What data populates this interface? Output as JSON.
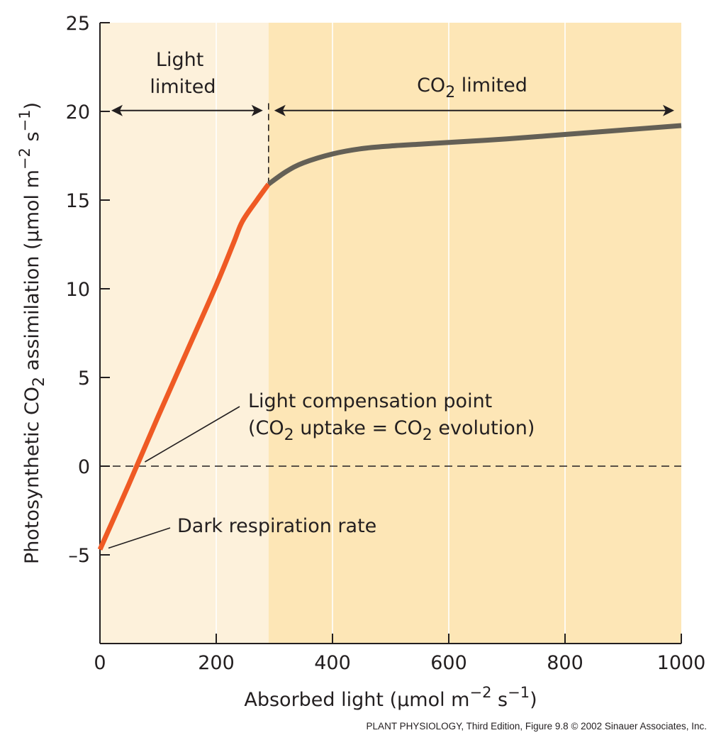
{
  "chart_data": {
    "type": "line",
    "xlabel_parts": [
      "Absorbed light (μmol m",
      "−2",
      " s",
      "−1",
      ")"
    ],
    "ylabel_parts": [
      "Photosynthetic CO",
      "2",
      " assimilation (μmol m",
      "−2",
      " s",
      "−1",
      ")"
    ],
    "xlim": [
      0,
      1000
    ],
    "ylim": [
      -10,
      25
    ],
    "x_ticks": [
      0,
      200,
      400,
      600,
      800,
      1000
    ],
    "x_tick_labels": [
      "0",
      "200",
      "400",
      "600",
      "800",
      "1000"
    ],
    "y_ticks": [
      -5,
      0,
      5,
      10,
      15,
      20,
      25
    ],
    "y_tick_labels": [
      "–5",
      "0",
      "5",
      "10",
      "15",
      "20",
      "25"
    ],
    "grid": true,
    "regions": [
      {
        "label_lines": [
          "Light",
          "limited"
        ],
        "x_range": [
          0,
          290
        ],
        "color": "#fdf1db"
      },
      {
        "label_parts": [
          "CO",
          "2",
          " limited"
        ],
        "x_range": [
          290,
          1000
        ],
        "color": "#fde6b6"
      }
    ],
    "series": [
      {
        "segment": "light-limited",
        "color": "#ef5a24",
        "x": [
          0,
          50,
          100,
          150,
          200,
          230,
          245,
          270,
          290
        ],
        "y": [
          -4.7,
          -1.0,
          2.8,
          6.5,
          10.2,
          12.6,
          13.8,
          15.0,
          15.9
        ]
      },
      {
        "segment": "co2-limited",
        "color": "#646056",
        "x": [
          290,
          320,
          350,
          400,
          450,
          500,
          550,
          600,
          700,
          800,
          900,
          1000
        ],
        "y": [
          15.9,
          16.6,
          17.1,
          17.6,
          17.9,
          18.05,
          18.15,
          18.25,
          18.45,
          18.7,
          18.95,
          19.2
        ]
      }
    ],
    "annotations": [
      {
        "name": "light-compensation-point",
        "line1": "Light compensation point",
        "line2_parts": [
          "(CO",
          "2",
          " uptake = CO",
          "2",
          " evolution)"
        ],
        "x": 70,
        "y": 0
      },
      {
        "name": "dark-respiration-rate",
        "text": "Dark respiration rate",
        "x": 0,
        "y": -4.7
      }
    ],
    "reference_lines": [
      {
        "axis": "y",
        "value": 0,
        "style": "dashed"
      },
      {
        "axis": "x",
        "value": 290,
        "y_range": [
          15.9,
          20.5
        ],
        "style": "dashed"
      }
    ]
  },
  "credit": {
    "book": "PLANT PHYSIOLOGY",
    "edition": ", Third Edition, Figure 9.8  © 2002 Sinauer Associates, Inc."
  }
}
